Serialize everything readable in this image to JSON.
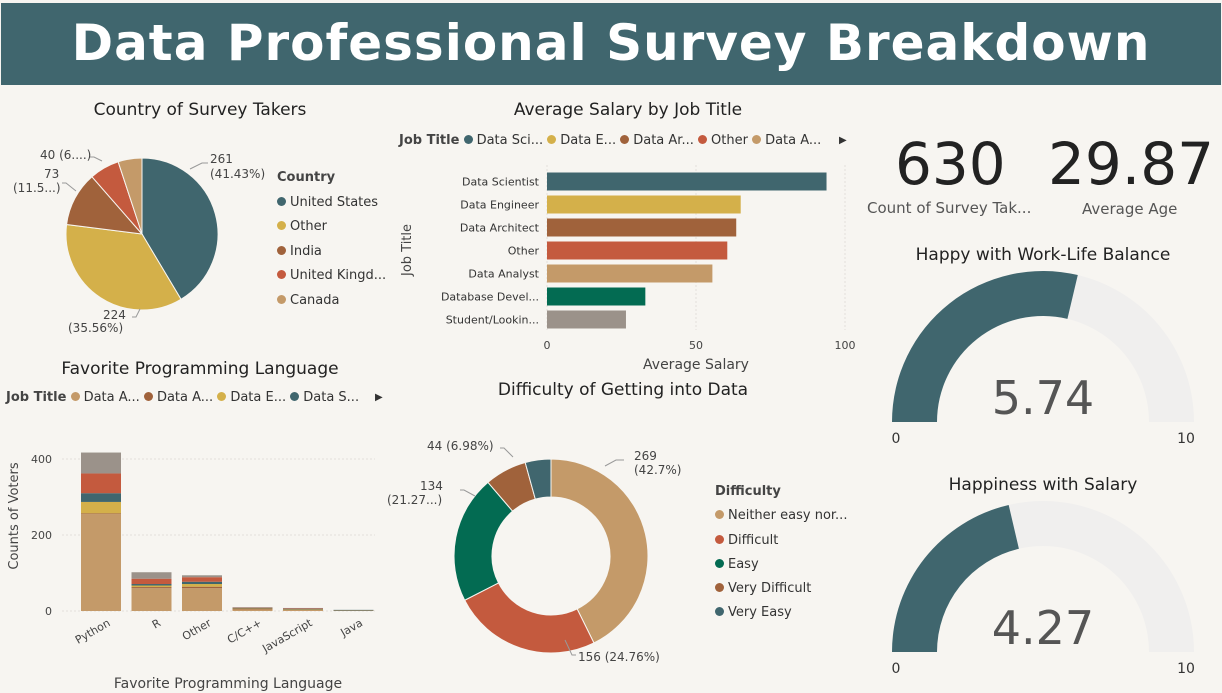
{
  "header": {
    "title": "Data Professional Survey Breakdown"
  },
  "colors": {
    "header_bg": "#40666e",
    "slate": "#40666e",
    "gold": "#d4b04a",
    "brown": "#a0623b",
    "red": "#c45a3e",
    "tan": "#c49a69",
    "green": "#036b52",
    "gray": "#9b928a",
    "gauge_track": "#f0efee"
  },
  "country": {
    "legend_title": "Country",
    "items": [
      "United States",
      "Other",
      "India",
      "United Kingd...",
      "Canada"
    ],
    "label_us_value": "261",
    "label_us_pct": "(41.43%)",
    "label_other_value": "224",
    "label_other_pct": "(35.56%)",
    "label_india_value": "73",
    "label_india_pct": "(11.5...)",
    "label_uk": "40 (6....)"
  },
  "salary": {
    "legend_title": "Job Title",
    "legend_items": [
      "Data Sci...",
      "Data E...",
      "Data Ar...",
      "Other",
      "Data A..."
    ],
    "categories": [
      "Data Scientist",
      "Data Engineer",
      "Data Architect",
      "Other",
      "Data Analyst",
      "Database Devel...",
      "Student/Lookin..."
    ],
    "ticks": [
      "0",
      "50",
      "100"
    ],
    "xlabel": "Average Salary",
    "ylabel": "Job Title"
  },
  "language": {
    "legend_title": "Job Title",
    "legend_items": [
      "Data A...",
      "Data A...",
      "Data E...",
      "Data S..."
    ],
    "categories": [
      "Python",
      "R",
      "Other",
      "C/C++",
      "JavaScript",
      "Java"
    ],
    "yticks": [
      "400",
      "200",
      "0"
    ],
    "xlabel": "Favorite Programming Language",
    "ylabel": "Counts of Voters"
  },
  "difficulty": {
    "legend_title": "Difficulty",
    "items": [
      "Neither easy nor...",
      "Difficult",
      "Easy",
      "Very Difficult",
      "Very Easy"
    ],
    "label_neither_value": "269",
    "label_neither_pct": "(42.7%)",
    "label_difficult": "156 (24.76%)",
    "label_easy_value": "134",
    "label_easy_pct": "(21.27...)",
    "label_vdifficult": "44 (6.98%)"
  },
  "kpis": {
    "count_value": "630",
    "count_label": "Count of Survey Tak...",
    "age_value": "29.87",
    "age_label": "Average Age"
  },
  "gauges": {
    "worklife_title": "Happy with Work-Life Balance",
    "worklife_value": "5.74",
    "salary_title": "Happiness with Salary",
    "salary_value": "4.27",
    "min_label": "0",
    "max_label": "10"
  },
  "chart_data": [
    {
      "type": "pie",
      "title": "Country of Survey Takers",
      "categories": [
        "United States",
        "Other",
        "India",
        "United Kingdom",
        "Canada"
      ],
      "values": [
        261,
        224,
        73,
        40,
        32
      ],
      "colors": [
        "#40666e",
        "#d4b04a",
        "#a0623b",
        "#c45a3e",
        "#c49a69"
      ],
      "legend_position": "right"
    },
    {
      "type": "bar",
      "orientation": "horizontal",
      "title": "Average Salary by Job Title",
      "categories": [
        "Data Scientist",
        "Data Engineer",
        "Data Architect",
        "Other",
        "Data Analyst",
        "Database Devel...",
        "Student/Lookin..."
      ],
      "values": [
        93.8,
        65,
        63.5,
        60.5,
        55.5,
        33,
        26.5
      ],
      "colors": [
        "#40666e",
        "#d4b04a",
        "#a0623b",
        "#c45a3e",
        "#c49a69",
        "#036b52",
        "#9b928a"
      ],
      "xlim": [
        0,
        100
      ],
      "xlabel": "Average Salary",
      "ylabel": "Job Title",
      "legend_position": "top"
    },
    {
      "type": "bar",
      "stacked": true,
      "title": "Favorite Programming Language",
      "categories": [
        "Python",
        "R",
        "Other",
        "C/C++",
        "JavaScript",
        "Java"
      ],
      "series": [
        {
          "color": "#c49a69",
          "values": [
            255,
            60,
            60,
            5,
            4,
            2
          ]
        },
        {
          "color": "#a0623b",
          "values": [
            2,
            3,
            4,
            1,
            0,
            0
          ]
        },
        {
          "color": "#d4b04a",
          "values": [
            30,
            4,
            7,
            1,
            1,
            0
          ]
        },
        {
          "color": "#40666e",
          "values": [
            23,
            4,
            6,
            1,
            1,
            1
          ]
        },
        {
          "color": "#c45a3e",
          "values": [
            52,
            14,
            12,
            1,
            1,
            0
          ]
        },
        {
          "color": "#9b928a",
          "values": [
            55,
            17,
            5,
            1,
            1,
            0
          ]
        }
      ],
      "ylim": [
        0,
        450
      ],
      "yticks": [
        0,
        200,
        400
      ],
      "xlabel": "Favorite Programming Language",
      "ylabel": "Counts of Voters",
      "legend_position": "top"
    },
    {
      "type": "pie",
      "donut": true,
      "title": "Difficulty of Getting into Data",
      "categories": [
        "Neither easy nor difficult",
        "Difficult",
        "Easy",
        "Very Difficult",
        "Very Easy"
      ],
      "values": [
        269,
        156,
        134,
        44,
        27
      ],
      "colors": [
        "#c49a69",
        "#c45a3e",
        "#036b52",
        "#a0623b",
        "#40666e"
      ],
      "legend_position": "right"
    },
    {
      "type": "gauge",
      "title": "Happy with Work-Life Balance",
      "value": 5.74,
      "min": 0,
      "max": 10
    },
    {
      "type": "gauge",
      "title": "Happiness with Salary",
      "value": 4.27,
      "min": 0,
      "max": 10
    }
  ]
}
